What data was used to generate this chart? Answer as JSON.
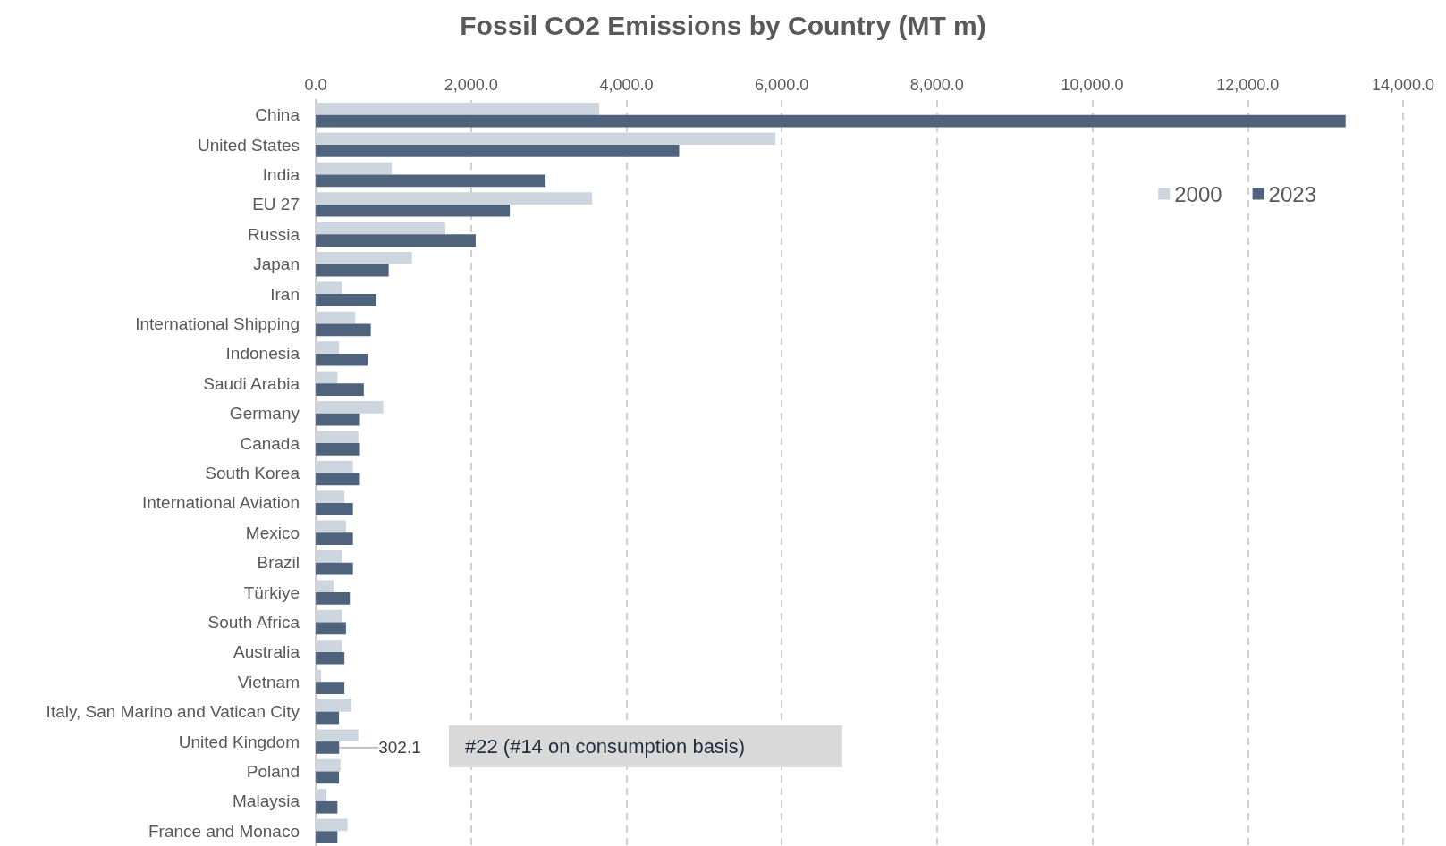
{
  "chart_data": {
    "type": "bar",
    "orientation": "horizontal",
    "title": "Fossil CO2 Emissions by Country (MT m)",
    "categories": [
      "China",
      "United States",
      "India",
      "EU 27",
      "Russia",
      "Japan",
      "Iran",
      "International Shipping",
      "Indonesia",
      "Saudi Arabia",
      "Germany",
      "Canada",
      "South Korea",
      "International Aviation",
      "Mexico",
      "Brazil",
      "Türkiye",
      "South Africa",
      "Australia",
      "Vietnam",
      "Italy, San Marino and Vatican City",
      "United Kingdom",
      "Poland",
      "Malaysia",
      "France and Monaco"
    ],
    "series": [
      {
        "name": "2000",
        "color": "#cdd5df",
        "values": [
          3650,
          5920,
          980,
          3560,
          1670,
          1240,
          340,
          510,
          300,
          280,
          870,
          550,
          480,
          370,
          390,
          340,
          230,
          340,
          340,
          70,
          460,
          550,
          320,
          140,
          410
        ]
      },
      {
        "name": "2023",
        "color": "#4f637c",
        "values": [
          13260,
          4680,
          2960,
          2500,
          2060,
          940,
          780,
          710,
          670,
          620,
          570,
          570,
          570,
          480,
          480,
          480,
          440,
          390,
          370,
          370,
          300,
          302.1,
          300,
          280,
          280
        ],
        "value_labels": [
          null,
          null,
          null,
          null,
          null,
          null,
          null,
          null,
          null,
          null,
          null,
          null,
          null,
          null,
          null,
          null,
          null,
          null,
          null,
          null,
          null,
          "302.1",
          null,
          null,
          null
        ]
      }
    ],
    "xlim": [
      0,
      14000
    ],
    "xticks": [
      {
        "value": 0,
        "label": "0.0"
      },
      {
        "value": 2000,
        "label": "2,000.0"
      },
      {
        "value": 4000,
        "label": "4,000.0"
      },
      {
        "value": 6000,
        "label": "6,000.0"
      },
      {
        "value": 8000,
        "label": "8,000.0"
      },
      {
        "value": 10000,
        "label": "10,000.0"
      },
      {
        "value": 12000,
        "label": "12,000.0"
      },
      {
        "value": 14000,
        "label": "14,000.0"
      }
    ],
    "grid": "x",
    "legend": "top right",
    "annotations": [
      "#22 (#14 on consumption basis)"
    ]
  }
}
